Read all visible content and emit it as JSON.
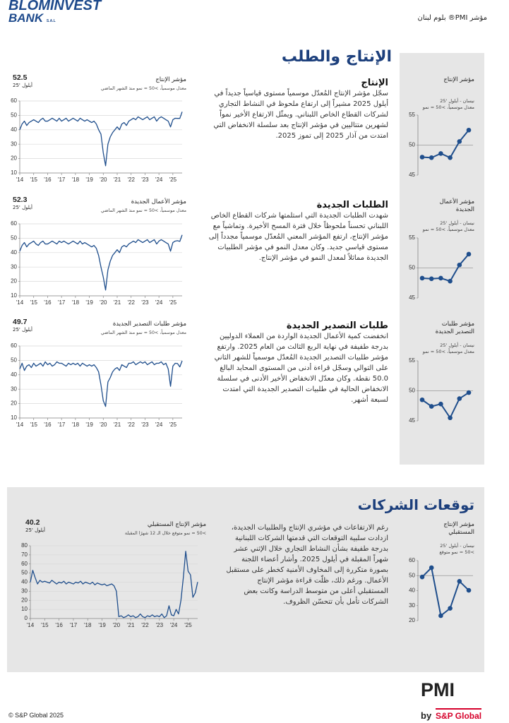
{
  "header": {
    "logo_main": "BLOMINVEST",
    "logo_sub": "BANK",
    "logo_suffix": "S.A.L",
    "title": "مؤشر PMI® بلوم لبنان"
  },
  "section1": {
    "title": "الإنتاج والطلب",
    "items": [
      {
        "heading": "الإنتاج",
        "text": "سجّل مؤشر الإنتاج المُعدّل موسمياً مستوى قياسياً جديداً في أيلول 2025 مشيراً إلى ارتفاع ملحوظ في النشاط التجاري لشركات القطاع الخاص اللبناني. ويمثّل الارتفاع الأخير نمواً لشهرين متتاليين في مؤشر الإنتاج بعد سلسلة الانخفاض التي امتدت من آذار 2025 إلى تموز 2025."
      },
      {
        "heading": "الطلبات الجديدة",
        "text": "شهدت الطلبات الجديدة التي استلمتها شركات القطاع الخاص اللبناني تحسناً ملحوظاً خلال فترة المسح الأخيرة. وتماشياً مع مؤشر الإنتاج، ارتفع المؤشر المعني المُعدّل موسمياً مجدداً إلى مستوى قياسي جديد. وكان معدل النمو في مؤشر الطلبيات الجديدة مماثلاً لمعدل النمو في مؤشر الإنتاج."
      },
      {
        "heading": "طلبات التصدير الجديدة",
        "text": "انخفضت كمية الأعمال الجديدة الواردة من العملاء الدوليين بدرجة طفيفة في نهاية الربع الثالث من العام 2025. وارتفع مؤشر طلبيات التصدير الجديدة المُعدّل موسمياً للشهر الثاني على التوالي وسجّل قراءة أدنى من المستوى المحايد البالغ 50.0 نقطة. وكان معدّل الانخفاض الأخير الأدنى في سلسلة الانخفاض الحالية في طلبيات التصدير الجديدة التي امتدت لسبعة أشهر."
      }
    ]
  },
  "section2": {
    "title": "توقعات الشركات",
    "text": "رغم الارتفاعات في مؤشري الإنتاج والطلبيات الجديدة، ازدادت سلبية التوقعات التي قدمتها الشركات اللبنانية بدرجة طفيفة بشأن النشاط التجاري خلال الإثني عشر شهراً المقبلة في أيلول 2025. وأشار أعضاء اللجنة بصورة متكررة إلى المخاوف الأمنية كخطر على مستقبل الأعمال. ورغم ذلك، ظلّت قراءة مؤشر الإنتاج المستقبلي أعلى من متوسط الدراسة وكانت بعض الشركات تأمل بأن تتحسّن الظروف."
  },
  "footer": {
    "copyright": "© S&P Global 2025",
    "pmi": "PMI",
    "by": "by",
    "brand": "S&P Global"
  },
  "chart_data": [
    {
      "type": "line",
      "title": "مؤشر الإنتاج",
      "subtitle": [
        "نيسان - أيلول '25",
        "معدل موسمياً، >50 = نمو"
      ],
      "categories": [
        null,
        null,
        null,
        null,
        null,
        null
      ],
      "values": [
        48.0,
        47.9,
        48.6,
        47.9,
        50.6,
        52.5
      ],
      "color": "#1f4e8c",
      "ylim": [
        45,
        55
      ],
      "yticks": [
        45,
        50,
        55
      ],
      "ref_line": 50
    },
    {
      "type": "line",
      "title": "مؤشر الإنتاج",
      "subtitle": [
        "معدل موسمياً، >50 = نمو منذ الشهر الماضي"
      ],
      "date_label": "أيلول '25",
      "categories": [
        "'14",
        null,
        null,
        null,
        null,
        null,
        "'15",
        null,
        null,
        null,
        null,
        null,
        "'16",
        null,
        null,
        null,
        null,
        null,
        "'17",
        null,
        null,
        null,
        null,
        null,
        "'18",
        null,
        null,
        null,
        null,
        null,
        "'19",
        null,
        null,
        null,
        null,
        null,
        "'20",
        null,
        null,
        null,
        null,
        null,
        "'21",
        null,
        null,
        null,
        null,
        null,
        "'22",
        null,
        null,
        null,
        null,
        null,
        "'23",
        null,
        null,
        null,
        null,
        null,
        "'24",
        null,
        null,
        null,
        null,
        null,
        "'25",
        null,
        null,
        null,
        null
      ],
      "values": [
        40,
        44,
        46,
        43,
        45,
        46,
        47,
        46,
        45,
        47,
        48,
        46,
        46,
        47,
        48,
        47,
        46,
        48,
        46,
        47,
        48,
        46,
        47,
        48,
        47,
        46,
        48,
        47,
        46,
        47,
        46,
        45,
        46,
        44,
        40,
        37,
        24,
        15,
        30,
        35,
        38,
        40,
        42,
        40,
        44,
        45,
        43,
        46,
        47,
        48,
        47,
        49,
        48,
        47,
        48,
        49,
        47,
        48,
        49,
        46,
        48,
        49,
        48,
        47,
        46,
        42,
        47,
        48,
        47.9,
        47.9,
        52.5
      ],
      "color": "#1f4e8c",
      "ylim": [
        10,
        60
      ],
      "yticks": [
        10,
        20,
        30,
        40,
        50,
        60
      ],
      "grid": true
    },
    {
      "type": "line",
      "title": "مؤشر الأعمال الجديدة",
      "subtitle": [
        "نيسان - أيلول '25",
        "معدل موسمياً، >50 = نمو"
      ],
      "categories": [
        null,
        null,
        null,
        null,
        null,
        null
      ],
      "values": [
        48.3,
        48.2,
        48.3,
        47.8,
        50.5,
        52.3
      ],
      "color": "#1f4e8c",
      "ylim": [
        45,
        55
      ],
      "yticks": [
        45,
        50,
        55
      ],
      "ref_line": 50
    },
    {
      "type": "line",
      "title": "مؤشر الأعمال الجديدة",
      "subtitle": [
        "معدل موسمياً، >50 = نمو منذ الشهر الماضي"
      ],
      "date_label": "أيلول '25",
      "categories": [
        "'14",
        null,
        null,
        null,
        null,
        null,
        "'15",
        null,
        null,
        null,
        null,
        null,
        "'16",
        null,
        null,
        null,
        null,
        null,
        "'17",
        null,
        null,
        null,
        null,
        null,
        "'18",
        null,
        null,
        null,
        null,
        null,
        "'19",
        null,
        null,
        null,
        null,
        null,
        "'20",
        null,
        null,
        null,
        null,
        null,
        "'21",
        null,
        null,
        null,
        null,
        null,
        "'22",
        null,
        null,
        null,
        null,
        null,
        "'23",
        null,
        null,
        null,
        null,
        null,
        "'24",
        null,
        null,
        null,
        null,
        null,
        "'25",
        null,
        null,
        null,
        null
      ],
      "values": [
        41,
        45,
        47,
        44,
        46,
        47,
        48,
        46,
        45,
        47,
        48,
        46,
        46,
        47,
        48,
        47,
        46,
        48,
        47,
        48,
        47,
        46,
        47,
        48,
        47,
        46,
        48,
        46,
        47,
        46,
        45,
        44,
        45,
        43,
        38,
        30,
        23,
        14,
        28,
        34,
        38,
        40,
        42,
        40,
        44,
        45,
        44,
        46,
        47,
        48,
        47,
        49,
        48,
        47,
        48,
        49,
        47,
        48,
        49,
        46,
        48,
        49,
        48,
        47,
        46,
        41,
        47,
        48,
        48.3,
        47.8,
        52.3
      ],
      "color": "#1f4e8c",
      "ylim": [
        10,
        60
      ],
      "yticks": [
        10,
        20,
        30,
        40,
        50,
        60
      ],
      "grid": true
    },
    {
      "type": "line",
      "title": "مؤشر طلبات التصدير الجديدة",
      "subtitle": [
        "نيسان - أيلول '25",
        "معدل موسمياً، >50 = نمو"
      ],
      "categories": [
        null,
        null,
        null,
        null,
        null,
        null
      ],
      "values": [
        48.5,
        47.4,
        47.8,
        45.5,
        48.7,
        49.7
      ],
      "color": "#1f4e8c",
      "ylim": [
        45,
        55
      ],
      "yticks": [
        45,
        50,
        55
      ],
      "ref_line": 50
    },
    {
      "type": "line",
      "title": "مؤشر طلبات التصدير الجديدة",
      "subtitle": [
        "معدل موسمياً، >50 = نمو منذ الشهر الماضي"
      ],
      "date_label": "أيلول '25",
      "categories": [
        "'14",
        null,
        null,
        null,
        null,
        null,
        "'15",
        null,
        null,
        null,
        null,
        null,
        "'16",
        null,
        null,
        null,
        null,
        null,
        "'17",
        null,
        null,
        null,
        null,
        null,
        "'18",
        null,
        null,
        null,
        null,
        null,
        "'19",
        null,
        null,
        null,
        null,
        null,
        "'20",
        null,
        null,
        null,
        null,
        null,
        "'21",
        null,
        null,
        null,
        null,
        null,
        "'22",
        null,
        null,
        null,
        null,
        null,
        "'23",
        null,
        null,
        null,
        null,
        null,
        "'24",
        null,
        null,
        null,
        null,
        null,
        "'25",
        null,
        null,
        null,
        null
      ],
      "values": [
        44,
        48,
        43,
        46,
        47,
        45,
        48,
        46,
        47,
        48,
        46,
        49,
        47,
        48,
        46,
        47,
        49,
        48,
        48,
        47,
        46,
        48,
        47,
        48,
        47,
        48,
        46,
        48,
        47,
        46,
        47,
        46,
        47,
        45,
        42,
        33,
        22,
        18,
        35,
        38,
        42,
        44,
        45,
        43,
        47,
        46,
        45,
        48,
        48,
        49,
        47,
        48,
        49,
        48,
        49,
        47,
        48,
        49,
        47,
        48,
        48,
        49,
        47,
        48,
        44,
        32,
        46,
        48,
        47.8,
        45.5,
        49.7
      ],
      "color": "#1f4e8c",
      "ylim": [
        10,
        60
      ],
      "yticks": [
        10,
        20,
        30,
        40,
        50,
        60
      ],
      "grid": true
    },
    {
      "type": "line",
      "title": "مؤشر الإنتاج المستقبلي",
      "subtitle": [
        "نيسان - أيلول '25",
        ">50 = نمو متوقع"
      ],
      "categories": [
        null,
        null,
        null,
        null,
        null,
        null
      ],
      "values": [
        49.1,
        55.3,
        23.3,
        28.2,
        46.2,
        40.2
      ],
      "color": "#1f4e8c",
      "ylim": [
        20,
        60
      ],
      "yticks": [
        20,
        30,
        40,
        50,
        60
      ],
      "ref_line": 50
    },
    {
      "type": "line",
      "title": "مؤشر الإنتاج المستقبلي",
      "subtitle": [
        ">50 = نمو متوقع خلال الـ 12 شهرًا المقبلة"
      ],
      "date_label": "أيلول '25",
      "categories": [
        "'14",
        null,
        null,
        null,
        null,
        null,
        "'15",
        null,
        null,
        null,
        null,
        null,
        "'16",
        null,
        null,
        null,
        null,
        null,
        "'17",
        null,
        null,
        null,
        null,
        null,
        "'18",
        null,
        null,
        null,
        null,
        null,
        "'19",
        null,
        null,
        null,
        null,
        null,
        "'20",
        null,
        null,
        null,
        null,
        null,
        "'21",
        null,
        null,
        null,
        null,
        null,
        "'22",
        null,
        null,
        null,
        null,
        null,
        "'23",
        null,
        null,
        null,
        null,
        null,
        "'24",
        null,
        null,
        null,
        null,
        null,
        "'25",
        null,
        null,
        null,
        null
      ],
      "values": [
        40,
        53,
        45,
        38,
        42,
        40,
        41,
        40,
        39,
        42,
        40,
        38,
        40,
        39,
        41,
        38,
        40,
        39,
        38,
        40,
        39,
        41,
        38,
        40,
        39,
        38,
        40,
        37,
        39,
        38,
        37,
        38,
        36,
        37,
        38,
        36,
        30,
        2,
        3,
        1,
        2,
        4,
        2,
        3,
        1,
        2,
        5,
        2,
        1,
        3,
        2,
        4,
        2,
        3,
        2,
        5,
        1,
        3,
        14,
        4,
        3,
        10,
        5,
        20,
        45,
        74,
        52,
        48,
        23.3,
        28.2,
        40.2
      ],
      "color": "#1f4e8c",
      "ylim": [
        0,
        80
      ],
      "yticks": [
        0,
        10,
        20,
        30,
        40,
        50,
        60,
        70,
        80
      ],
      "grid": true
    }
  ]
}
